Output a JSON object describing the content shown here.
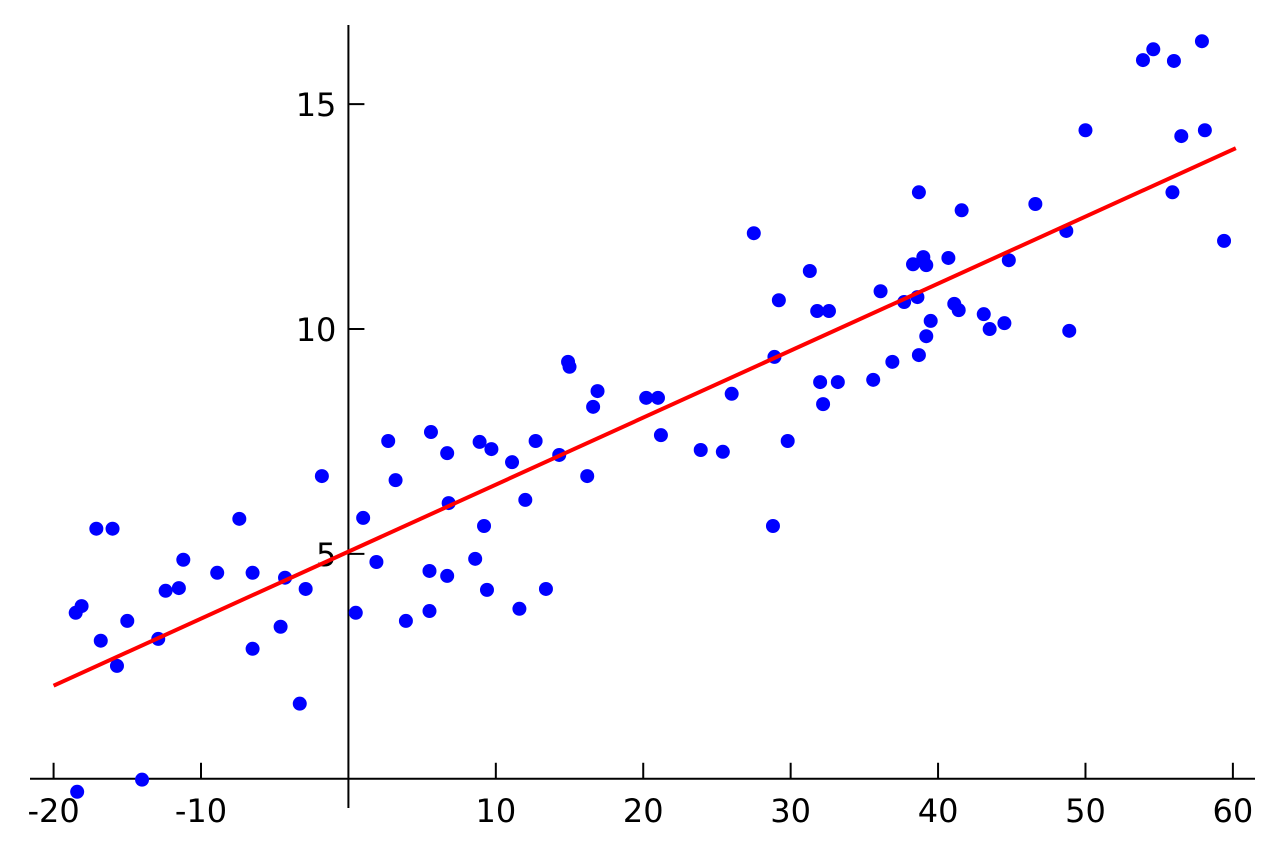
{
  "chart_data": {
    "type": "scatter",
    "xlim": [
      -21.6,
      61.5
    ],
    "ylim": [
      -0.65,
      16.76
    ],
    "xticks": [
      -20,
      -10,
      10,
      20,
      30,
      40,
      50,
      60
    ],
    "yticks": [
      5,
      10,
      15
    ],
    "series": [
      {
        "color": "#0000ff",
        "x": [
          -18.5,
          -18.1,
          -18.4,
          -17.1,
          -16.8,
          -16.0,
          -15.7,
          -15.0,
          -14.0,
          -12.9,
          -12.4,
          -11.5,
          -11.2,
          -8.9,
          -7.4,
          -6.5,
          -6.5,
          -4.6,
          -4.3,
          -3.3,
          -2.9,
          -1.8,
          0.5,
          1.0,
          1.9,
          2.7,
          3.2,
          3.9,
          5.5,
          5.5,
          5.6,
          6.7,
          6.7,
          6.8,
          8.6,
          8.9,
          9.2,
          9.4,
          9.7,
          11.1,
          11.6,
          12.0,
          12.7,
          13.4,
          14.3,
          14.9,
          15.0,
          16.2,
          16.6,
          16.9,
          20.2,
          21.0,
          21.2,
          23.9,
          25.4,
          26.0,
          27.5,
          28.8,
          28.9,
          29.2,
          29.8,
          31.3,
          31.8,
          32.0,
          32.2,
          32.6,
          33.2,
          35.6,
          36.1,
          36.9,
          37.7,
          38.3,
          38.6,
          38.7,
          38.7,
          39.0,
          39.2,
          39.2,
          39.5,
          40.7,
          41.1,
          41.4,
          41.6,
          43.1,
          43.5,
          44.5,
          44.8,
          46.6,
          48.7,
          48.9,
          50.0,
          53.9,
          54.6,
          56.0,
          55.9,
          56.5,
          57.9,
          58.1,
          59.4
        ],
        "values": [
          3.69,
          3.84,
          -0.29,
          5.56,
          3.07,
          5.56,
          2.51,
          3.51,
          -0.02,
          3.11,
          4.18,
          4.24,
          4.87,
          4.58,
          5.78,
          4.58,
          2.89,
          3.38,
          4.47,
          1.67,
          4.22,
          6.73,
          3.69,
          5.8,
          4.82,
          7.51,
          6.64,
          3.51,
          3.73,
          4.62,
          7.71,
          4.51,
          7.24,
          6.13,
          4.89,
          7.49,
          5.62,
          4.2,
          7.33,
          7.04,
          3.78,
          6.2,
          7.51,
          4.22,
          7.2,
          9.27,
          9.16,
          6.73,
          8.27,
          8.62,
          8.47,
          8.47,
          7.64,
          7.31,
          7.27,
          8.56,
          12.13,
          5.62,
          9.38,
          10.64,
          7.51,
          11.29,
          10.4,
          8.82,
          8.33,
          10.4,
          8.82,
          8.87,
          10.84,
          9.27,
          10.6,
          11.44,
          10.71,
          13.04,
          9.42,
          11.6,
          11.42,
          9.84,
          10.18,
          11.58,
          10.56,
          10.42,
          12.64,
          10.33,
          10.0,
          10.13,
          11.53,
          12.78,
          12.18,
          9.96,
          14.42,
          15.98,
          16.22,
          15.96,
          13.04,
          14.29,
          16.4,
          14.42,
          11.96
        ]
      }
    ],
    "fit_line": {
      "color": "#ff0000",
      "x": [
        -20,
        60.2
      ],
      "y": [
        2.07,
        14.02
      ]
    }
  }
}
